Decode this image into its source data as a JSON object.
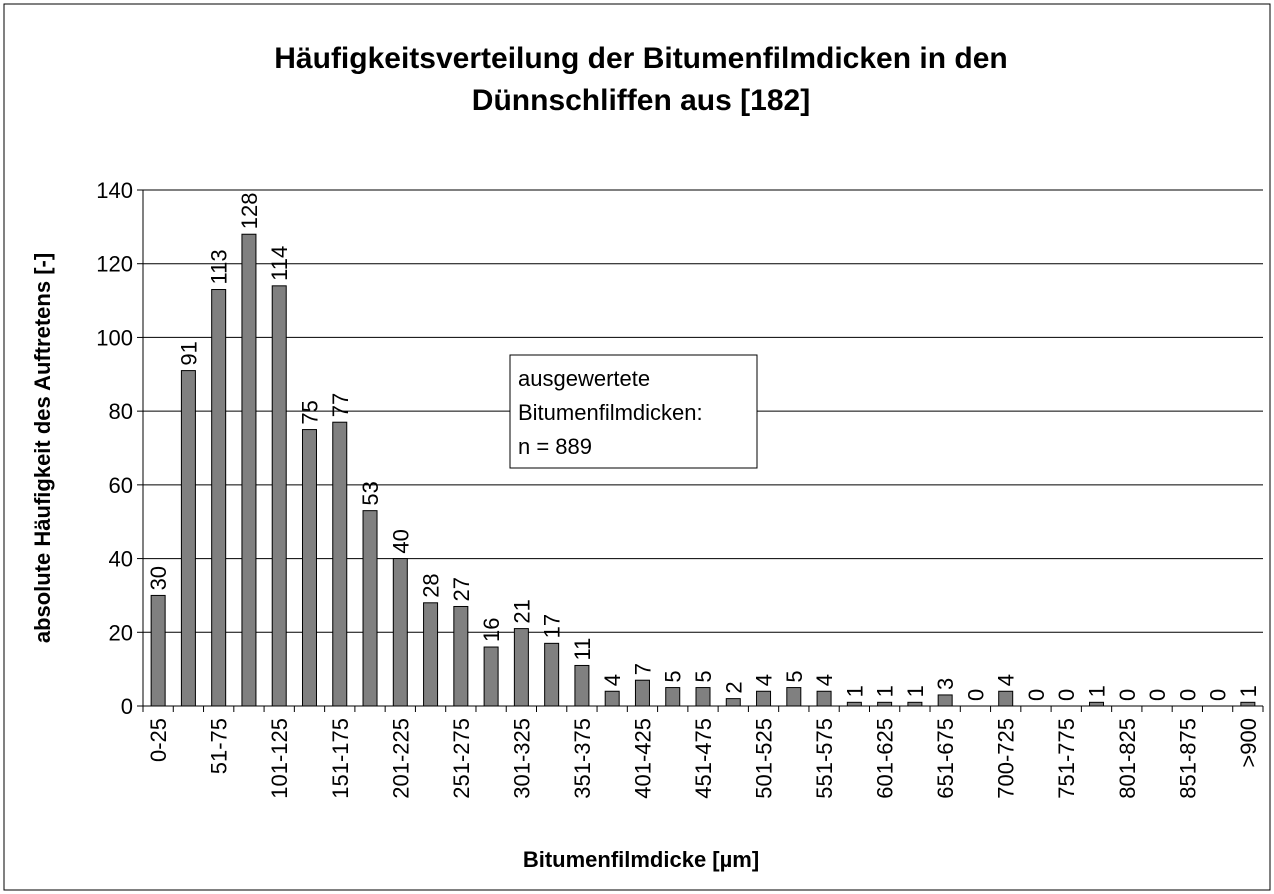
{
  "chart_data": {
    "type": "bar",
    "title": [
      "Häufigkeitsverteilung der Bitumenfilmdicken in den",
      "Dünnschliffen aus [182]"
    ],
    "x_label": "Bitumenfilmdicke [µm]",
    "y_label": "absolute Häufigkeit des Auftretens [-]",
    "annotation": [
      "ausgewertete",
      "Bitumenfilmdicken:",
      "n = 889"
    ],
    "categories": [
      "0-25",
      null,
      "51-75",
      null,
      "101-125",
      null,
      "151-175",
      null,
      "201-225",
      null,
      "251-275",
      null,
      "301-325",
      null,
      "351-375",
      null,
      "401-425",
      null,
      "451-475",
      null,
      "501-525",
      null,
      "551-575",
      null,
      "601-625",
      null,
      "651-675",
      null,
      "700-725",
      null,
      "751-775",
      null,
      "801-825",
      null,
      "851-875",
      null,
      ">900"
    ],
    "values": [
      30,
      91,
      113,
      128,
      114,
      75,
      77,
      53,
      40,
      28,
      27,
      16,
      21,
      17,
      11,
      4,
      7,
      5,
      5,
      2,
      4,
      5,
      4,
      1,
      1,
      1,
      3,
      0,
      4,
      0,
      0,
      1,
      0,
      0,
      0,
      0,
      1
    ],
    "color": "#808080",
    "ylim": [
      0,
      140
    ],
    "yticks": [
      0,
      20,
      40,
      60,
      80,
      100,
      120,
      140
    ],
    "grid": true
  }
}
